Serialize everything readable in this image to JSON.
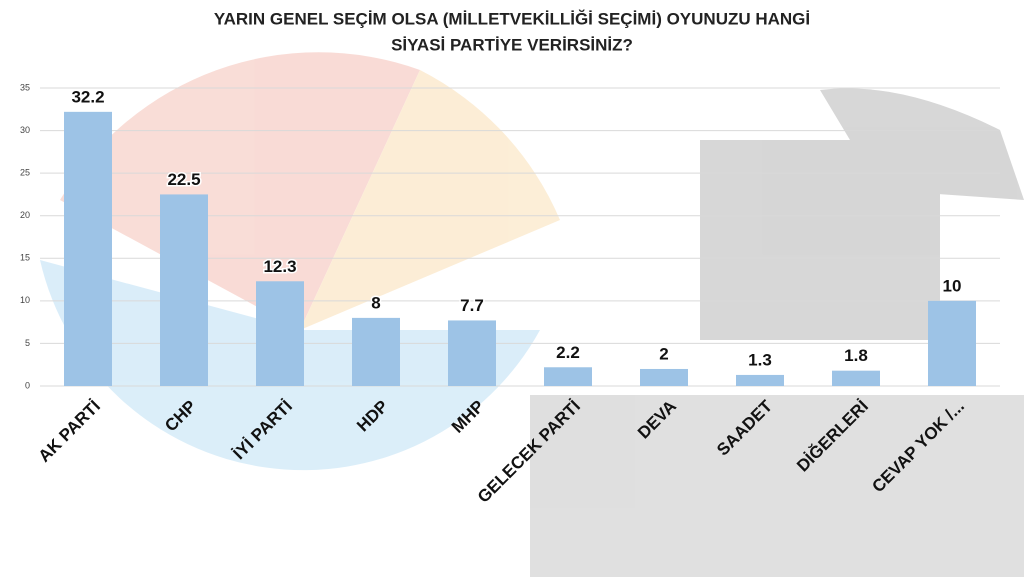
{
  "chart_data": {
    "type": "bar",
    "title": [
      "YARIN GENEL SEÇİM OLSA (MİLLETVEKİLLİĞİ SEÇİMİ) OYUNUZU HANGİ",
      "SİYASİ PARTİYE VERİRSİNİZ?"
    ],
    "categories": [
      "AK PARTİ",
      "CHP",
      "İYİ PARTİ",
      "HDP",
      "MHP",
      "GELECEK PARTİ",
      "DEVA",
      "SAADET",
      "DİĞERLERİ",
      "CEVAP YOK /..."
    ],
    "values": [
      32.2,
      22.5,
      12.3,
      8,
      7.7,
      2.2,
      2,
      1.3,
      1.8,
      10
    ],
    "color": "#9dc3e6",
    "ylim": [
      0,
      35
    ],
    "yticks": [
      0,
      5,
      10,
      15,
      20,
      25,
      30,
      35
    ],
    "grid": true
  }
}
